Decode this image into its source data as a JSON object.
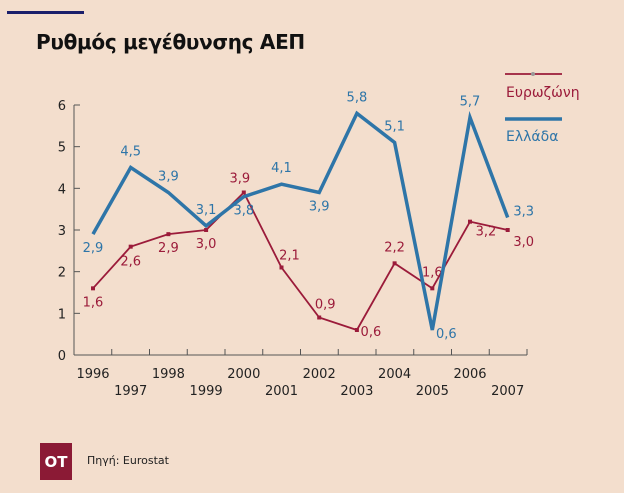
{
  "title": "Ρυθμός μεγέθυνσης ΑΕΠ",
  "source": "Πηγή: Eurostat",
  "logo": "OT",
  "colors": {
    "eurozone": "#9b1b3a",
    "greece": "#2e75a8",
    "axis": "#555555"
  },
  "chart_data": {
    "type": "line",
    "title": "Ρυθμός μεγέθυνσης ΑΕΠ",
    "x": [
      "1996",
      "1997",
      "1998",
      "1999",
      "2000",
      "2001",
      "2002",
      "2003",
      "2004",
      "2005",
      "2006",
      "2007"
    ],
    "yticks": [
      "0",
      "1",
      "2",
      "3",
      "4",
      "5",
      "6"
    ],
    "ylim": [
      0,
      6
    ],
    "legend_position": "top-right",
    "series": [
      {
        "name": "Ευρωζώνη",
        "values": [
          1.6,
          2.6,
          2.9,
          3.0,
          3.9,
          2.1,
          0.9,
          0.6,
          2.2,
          1.6,
          3.2,
          3.0
        ],
        "labels": [
          "1,6",
          "2,6",
          "2,9",
          "3,0",
          "3,9",
          "2,1",
          "0,9",
          "0,6",
          "2,2",
          "1,6",
          "3,2",
          "3,0"
        ]
      },
      {
        "name": "Ελλάδα",
        "values": [
          2.9,
          4.5,
          3.9,
          3.1,
          3.8,
          4.1,
          3.9,
          5.8,
          5.1,
          0.6,
          5.7,
          3.3
        ],
        "labels": [
          "2,9",
          "4,5",
          "3,9",
          "3,1",
          "3,8",
          "4,1",
          "3,9",
          "5,8",
          "5,1",
          "0,6",
          "5,7",
          "3,3"
        ]
      }
    ]
  }
}
